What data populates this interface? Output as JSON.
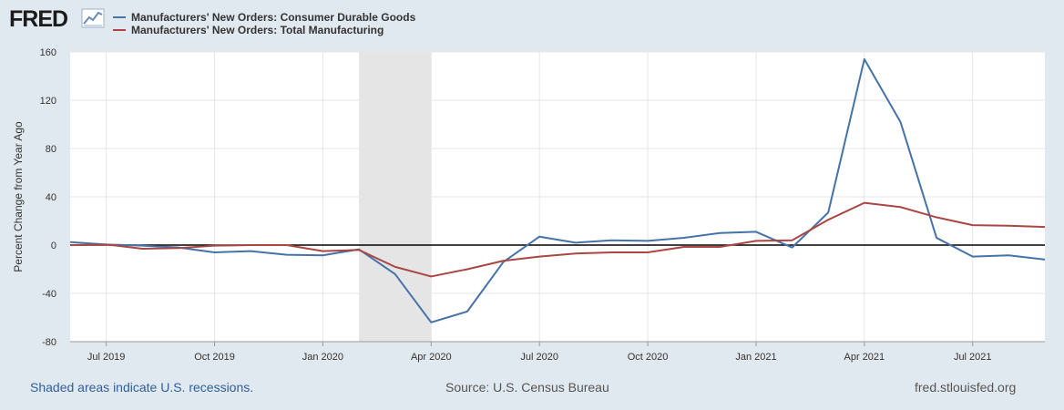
{
  "logo": {
    "text": "FRED",
    "icon": "line-chart-icon",
    "colors": {
      "text": "#1b1b1b",
      "icon": "#6a8bb0"
    }
  },
  "legend": [
    {
      "label": "Manufacturers' New Orders: Consumer Durable Goods",
      "color": "#4572a7"
    },
    {
      "label": "Manufacturers' New Orders: Total Manufacturing",
      "color": "#aa4643"
    }
  ],
  "footer": {
    "left": "Shaded areas indicate U.S. recessions.",
    "center": "Source: U.S. Census Bureau",
    "right": "fred.stlouisfed.org"
  },
  "chart_data": {
    "type": "line",
    "ylabel": "Percent Change from Year Ago",
    "xlabel": "",
    "ylim": [
      -80,
      160
    ],
    "yticks": [
      -80,
      -40,
      0,
      40,
      80,
      120,
      160
    ],
    "xlim": [
      "2019-06",
      "2021-09"
    ],
    "xticks": [
      "Jul 2019",
      "Oct 2019",
      "Jan 2020",
      "Apr 2020",
      "Jul 2020",
      "Oct 2020",
      "Jan 2021",
      "Apr 2021",
      "Jul 2021"
    ],
    "grid": true,
    "zero_line": true,
    "recession": {
      "start": "2020-02",
      "end": "2020-04",
      "color": "#e5e5e5"
    },
    "x": [
      "2019-06",
      "2019-07",
      "2019-08",
      "2019-09",
      "2019-10",
      "2019-11",
      "2019-12",
      "2020-01",
      "2020-02",
      "2020-03",
      "2020-04",
      "2020-05",
      "2020-06",
      "2020-07",
      "2020-08",
      "2020-09",
      "2020-10",
      "2020-11",
      "2020-12",
      "2021-01",
      "2021-02",
      "2021-03",
      "2021-04",
      "2021-05",
      "2021-06",
      "2021-07",
      "2021-08",
      "2021-09"
    ],
    "series": [
      {
        "name": "Manufacturers' New Orders: Consumer Durable Goods",
        "color": "#4572a7",
        "values": [
          2.5,
          0.5,
          -0.5,
          -2,
          -6,
          -5,
          -8,
          -8.5,
          -3.5,
          -24,
          -64,
          -55,
          -14,
          7,
          2,
          4,
          3.5,
          6,
          10,
          11,
          -2,
          27,
          154,
          102,
          6,
          -9.5,
          -8.5,
          -12
        ]
      },
      {
        "name": "Manufacturers' New Orders: Total Manufacturing",
        "color": "#aa4643",
        "values": [
          0,
          0.5,
          -3,
          -2.5,
          -0.5,
          0,
          0,
          -5,
          -4,
          -18,
          -26,
          -20,
          -13,
          -9.5,
          -7,
          -6,
          -6,
          -1.5,
          -1.5,
          3.5,
          4,
          21,
          35,
          31.5,
          23,
          16.5,
          16,
          15
        ]
      }
    ]
  }
}
